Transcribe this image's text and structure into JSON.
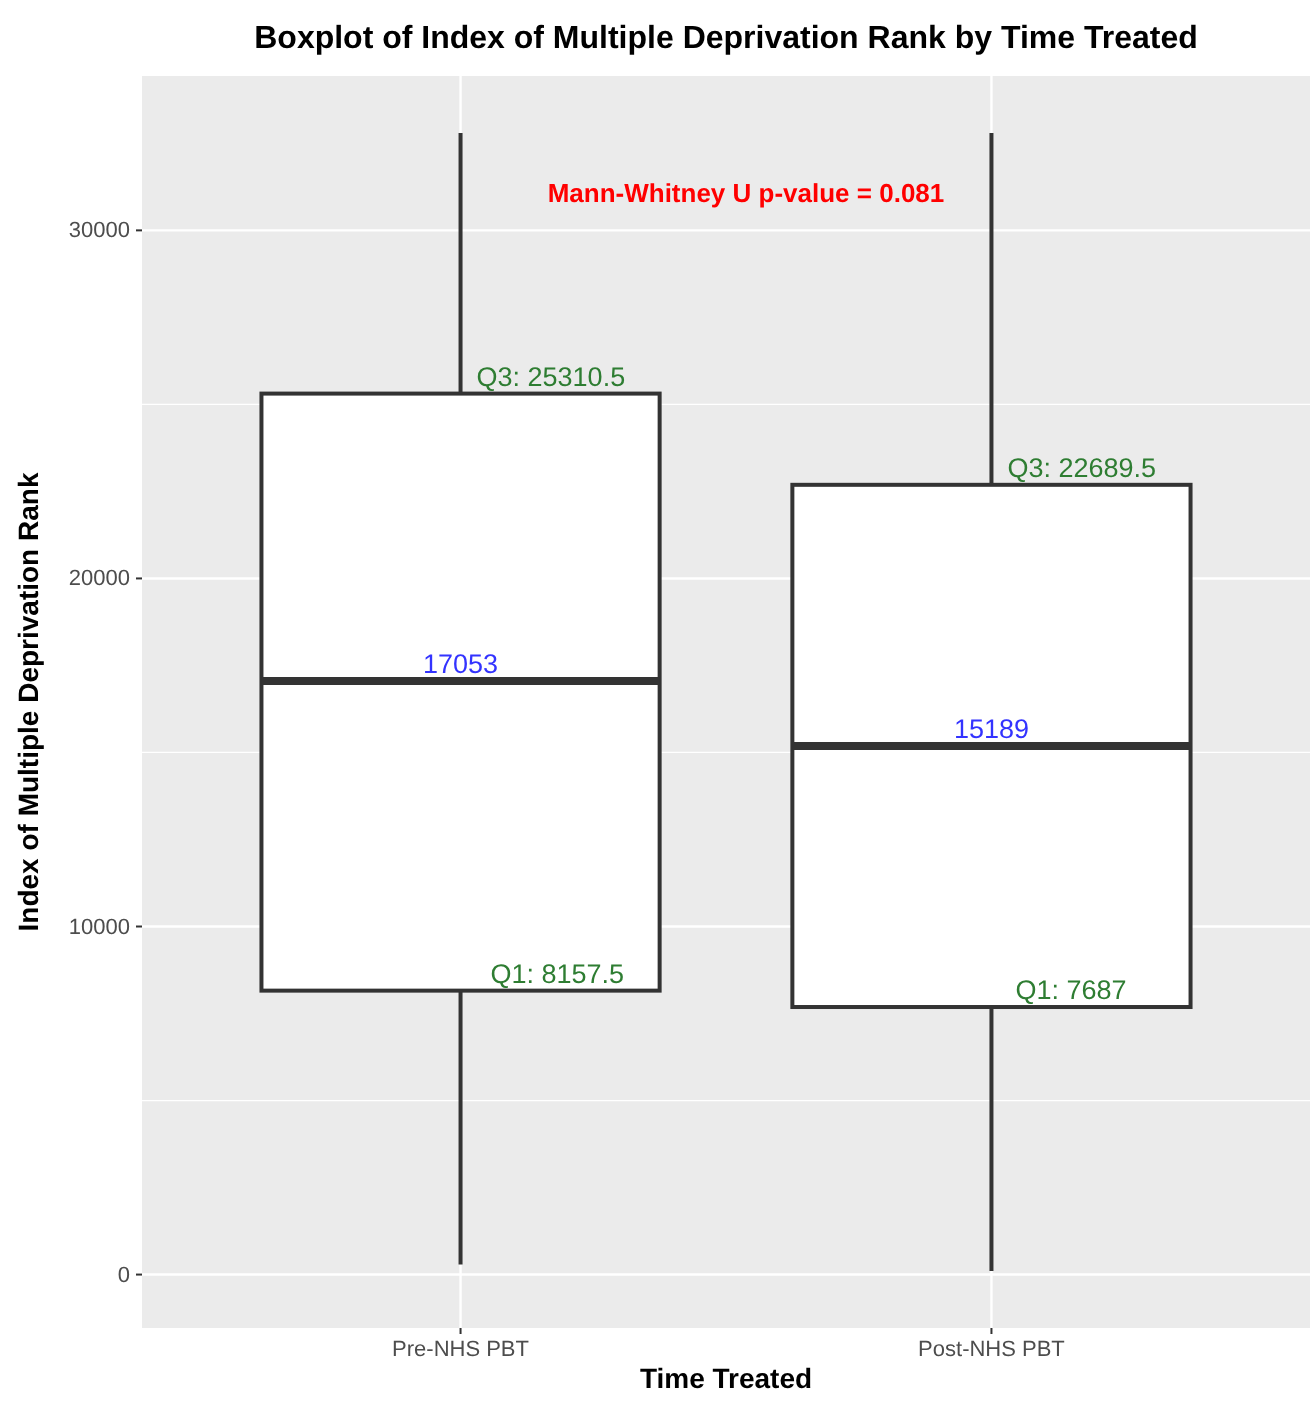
{
  "chart_data": {
    "type": "box",
    "title": "Boxplot of Index of Multiple Deprivation Rank by Time Treated",
    "xlabel": "Time Treated",
    "ylabel": "Index of Multiple Deprivation Rank",
    "categories": [
      "Pre-NHS PBT",
      "Post-NHS PBT"
    ],
    "boxes": [
      {
        "low": 290,
        "q1": 8157.5,
        "median": 17053,
        "q3": 25310.5,
        "high": 32800
      },
      {
        "low": 100,
        "q1": 7687,
        "median": 15189,
        "q3": 22689.5,
        "high": 32800
      }
    ],
    "ylim": [
      -1535,
      34435
    ],
    "yticks": [
      0,
      10000,
      20000,
      30000
    ],
    "grid": true,
    "annotations": [
      "Mann-Whitney U p-value = 0.081",
      {
        "text": "Q3: 25310.5",
        "x": "Pre-NHS PBT",
        "y": 25310.5
      },
      {
        "text": "17053",
        "x": "Pre-NHS PBT",
        "y": 17053
      },
      {
        "text": "Q1: 8157.5",
        "x": "Pre-NHS PBT",
        "y": 8157.5
      },
      {
        "text": "Q3: 22689.5",
        "x": "Post-NHS PBT",
        "y": 22689.5
      },
      {
        "text": "15189",
        "x": "Post-NHS PBT",
        "y": 15189
      },
      {
        "text": "Q1: 7687",
        "x": "Post-NHS PBT",
        "y": 7687
      }
    ]
  }
}
